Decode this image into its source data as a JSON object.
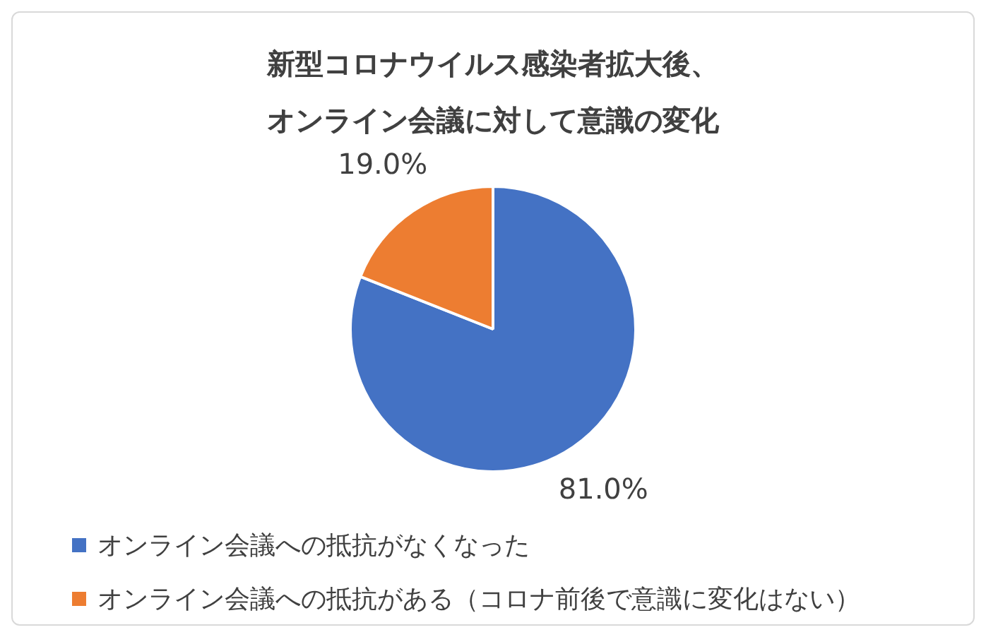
{
  "chart_data": {
    "type": "pie",
    "title": "新型コロナウイルス感染者拡大後、オンライン会議に対して意識の変化",
    "categories": [
      "オンライン会議への抵抗がなくなった",
      "オンライン会議への抵抗がある（コロナ前後で意識に変化はない）"
    ],
    "values": [
      81.0,
      19.0
    ],
    "colors": [
      "#4472c4",
      "#ed7d31"
    ],
    "value_labels": [
      "81.0%",
      "19.0%"
    ],
    "legend": "bottom"
  }
}
